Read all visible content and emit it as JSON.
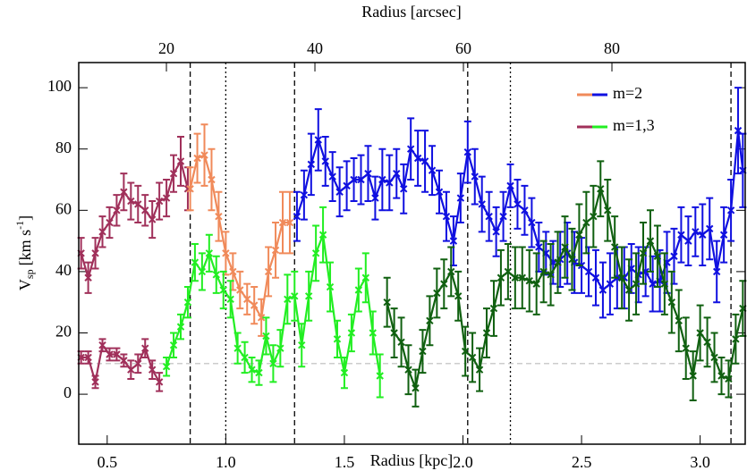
{
  "chart_data": {
    "type": "errorline",
    "xlabel": "Radius [kpc]",
    "x2label": "Radius [arcsec]",
    "ylabel": {
      "main": "V",
      "sub": "sp",
      "unit": "[km s",
      "sup": "-1",
      "end": "]"
    },
    "xlim": [
      0.38,
      3.19
    ],
    "xticks": [
      {
        "value": 0.5,
        "label": "0.5"
      },
      {
        "value": 1.0,
        "label": "1.0"
      },
      {
        "value": 1.5,
        "label": "1.5"
      },
      {
        "value": 2.0,
        "label": "2.0"
      },
      {
        "value": 2.5,
        "label": "2.5"
      },
      {
        "value": 3.0,
        "label": "3.0"
      }
    ],
    "x2lim": [
      8.19,
      97.95
    ],
    "x2ticks": [
      20,
      40,
      60,
      80
    ],
    "ylim": [
      -16.3,
      108.2
    ],
    "yticks": [
      0,
      20,
      40,
      60,
      80,
      100
    ],
    "vlines": [
      {
        "x": 0.85,
        "style": "dashed"
      },
      {
        "x": 1.0,
        "style": "dotted"
      },
      {
        "x": 1.29,
        "style": "dashed"
      },
      {
        "x": 2.02,
        "style": "dashed"
      },
      {
        "x": 2.2,
        "style": "dotted"
      },
      {
        "x": 3.13,
        "style": "dashed"
      }
    ],
    "hline": {
      "y": 10,
      "style": "dashed",
      "color": "#bbbbbb"
    },
    "series": [
      {
        "name": "m=2",
        "segments": [
          {
            "color": "#a0305a",
            "x": [
              0.39,
              0.42,
              0.45,
              0.48,
              0.51,
              0.54,
              0.57,
              0.6,
              0.63,
              0.66,
              0.69,
              0.72,
              0.75,
              0.78,
              0.81,
              0.84
            ],
            "values": [
              46,
              38,
              46,
              53,
              56,
              60,
              66,
              63,
              62,
              60,
              57,
              63,
              64,
              72,
              76,
              67
            ],
            "errors": [
              5,
              5,
              5,
              5,
              5,
              5,
              6,
              6,
              6,
              5,
              6,
              6,
              6,
              6,
              8,
              7
            ]
          },
          {
            "color": "#f08a5a",
            "x": [
              0.85,
              0.88,
              0.91,
              0.94,
              0.97,
              1.0,
              1.03,
              1.06,
              1.09,
              1.12,
              1.15,
              1.18,
              1.21,
              1.24,
              1.27
            ],
            "values": [
              67,
              77,
              78,
              70,
              58,
              46,
              40,
              34,
              31,
              29,
              25,
              40,
              47,
              56,
              56
            ],
            "errors": [
              7,
              8,
              10,
              10,
              8,
              7,
              6,
              6,
              5,
              6,
              6,
              8,
              9,
              10,
              10
            ]
          },
          {
            "color": "#1010e0",
            "x": [
              1.3,
              1.33,
              1.36,
              1.39,
              1.42,
              1.45,
              1.48,
              1.51,
              1.54,
              1.57,
              1.6,
              1.63,
              1.66,
              1.69,
              1.72,
              1.75,
              1.78,
              1.81,
              1.84,
              1.87,
              1.9,
              1.93,
              1.96,
              1.99,
              2.02,
              2.05,
              2.08,
              2.11,
              2.14,
              2.17,
              2.2,
              2.23,
              2.26,
              2.29,
              2.32,
              2.35,
              2.38,
              2.41,
              2.44,
              2.47,
              2.5,
              2.53,
              2.56,
              2.59,
              2.62,
              2.65,
              2.68,
              2.71,
              2.74,
              2.77,
              2.8,
              2.83,
              2.86,
              2.89,
              2.92,
              2.95,
              2.98,
              3.01,
              3.04,
              3.07,
              3.1,
              3.13,
              3.16,
              3.18
            ],
            "values": [
              58,
              65,
              75,
              83,
              76,
              71,
              66,
              68,
              70,
              70,
              72,
              64,
              70,
              69,
              72,
              67,
              80,
              77,
              76,
              73,
              66,
              58,
              50,
              64,
              79,
              71,
              62,
              58,
              53,
              58,
              68,
              62,
              60,
              56,
              48,
              46,
              43,
              44,
              46,
              43,
              42,
              40,
              38,
              34,
              36,
              38,
              38,
              41,
              39,
              40,
              36,
              37,
              43,
              45,
              52,
              50,
              53,
              52,
              54,
              40,
              52,
              60,
              86,
              73
            ],
            "errors": [
              8,
              8,
              10,
              10,
              8,
              8,
              8,
              8,
              7,
              8,
              9,
              7,
              10,
              9,
              8,
              8,
              10,
              9,
              10,
              8,
              7,
              8,
              8,
              8,
              10,
              9,
              9,
              8,
              8,
              8,
              7,
              8,
              8,
              8,
              8,
              7,
              7,
              9,
              10,
              10,
              9,
              8,
              9,
              9,
              10,
              10,
              10,
              8,
              9,
              8,
              9,
              10,
              10,
              9,
              9,
              8,
              8,
              10,
              10,
              10,
              9,
              10,
              14,
              12
            ]
          }
        ]
      },
      {
        "name": "m=1,3",
        "segments": [
          {
            "color": "#a0305a",
            "x": [
              0.39,
              0.42,
              0.45,
              0.48,
              0.51,
              0.54,
              0.57,
              0.6,
              0.63,
              0.66,
              0.69,
              0.72
            ],
            "values": [
              12,
              12,
              4,
              16,
              13,
              13,
              11,
              8,
              10,
              15,
              8,
              4
            ],
            "errors": [
              2,
              2,
              2,
              2,
              2,
              2,
              2,
              3,
              3,
              3,
              3,
              3
            ]
          },
          {
            "color": "#22ee22",
            "x": [
              0.75,
              0.78,
              0.81,
              0.84,
              0.87,
              0.9,
              0.93,
              0.96,
              0.99,
              1.02,
              1.05,
              1.08,
              1.11,
              1.14,
              1.17,
              1.2,
              1.23,
              1.26,
              1.29,
              1.32,
              1.35,
              1.38,
              1.41,
              1.44,
              1.47,
              1.5,
              1.53,
              1.56,
              1.59,
              1.62,
              1.65
            ],
            "values": [
              9,
              16,
              22,
              30,
              43,
              40,
              46,
              39,
              34,
              31,
              15,
              12,
              8,
              7,
              19,
              10,
              15,
              31,
              32,
              16,
              32,
              46,
              52,
              35,
              18,
              7,
              20,
              34,
              38,
              20,
              6
            ],
            "errors": [
              3,
              4,
              4,
              5,
              6,
              6,
              6,
              6,
              6,
              6,
              5,
              5,
              4,
              4,
              6,
              6,
              6,
              8,
              8,
              7,
              8,
              9,
              9,
              8,
              6,
              5,
              6,
              7,
              8,
              7,
              7
            ]
          },
          {
            "color": "#106010",
            "x": [
              1.68,
              1.71,
              1.74,
              1.77,
              1.8,
              1.83,
              1.86,
              1.89,
              1.92,
              1.95,
              1.98,
              2.01,
              2.04,
              2.07,
              2.1,
              2.13,
              2.16,
              2.19,
              2.22,
              2.25,
              2.28,
              2.31,
              2.34,
              2.37,
              2.4,
              2.43,
              2.46,
              2.49,
              2.52,
              2.55,
              2.58,
              2.61,
              2.64,
              2.67,
              2.7,
              2.73,
              2.76,
              2.79,
              2.82,
              2.85,
              2.88,
              2.91,
              2.94,
              2.97,
              3.0,
              3.03,
              3.06,
              3.09,
              3.12,
              3.15,
              3.18
            ],
            "values": [
              30,
              20,
              17,
              8,
              2,
              14,
              24,
              33,
              36,
              40,
              32,
              14,
              12,
              8,
              20,
              28,
              38,
              40,
              38,
              38,
              37,
              36,
              40,
              39,
              43,
              48,
              44,
              52,
              56,
              58,
              67,
              60,
              48,
              38,
              34,
              36,
              46,
              50,
              45,
              36,
              30,
              24,
              15,
              6,
              20,
              17,
              12,
              6,
              5,
              18,
              28
            ],
            "errors": [
              8,
              8,
              8,
              8,
              6,
              7,
              8,
              8,
              8,
              8,
              8,
              8,
              8,
              7,
              8,
              9,
              9,
              9,
              10,
              10,
              10,
              10,
              10,
              10,
              10,
              10,
              10,
              10,
              10,
              10,
              9,
              10,
              10,
              10,
              10,
              10,
              10,
              10,
              10,
              10,
              10,
              10,
              10,
              8,
              9,
              8,
              8,
              6,
              6,
              8,
              9
            ]
          }
        ]
      }
    ]
  }
}
